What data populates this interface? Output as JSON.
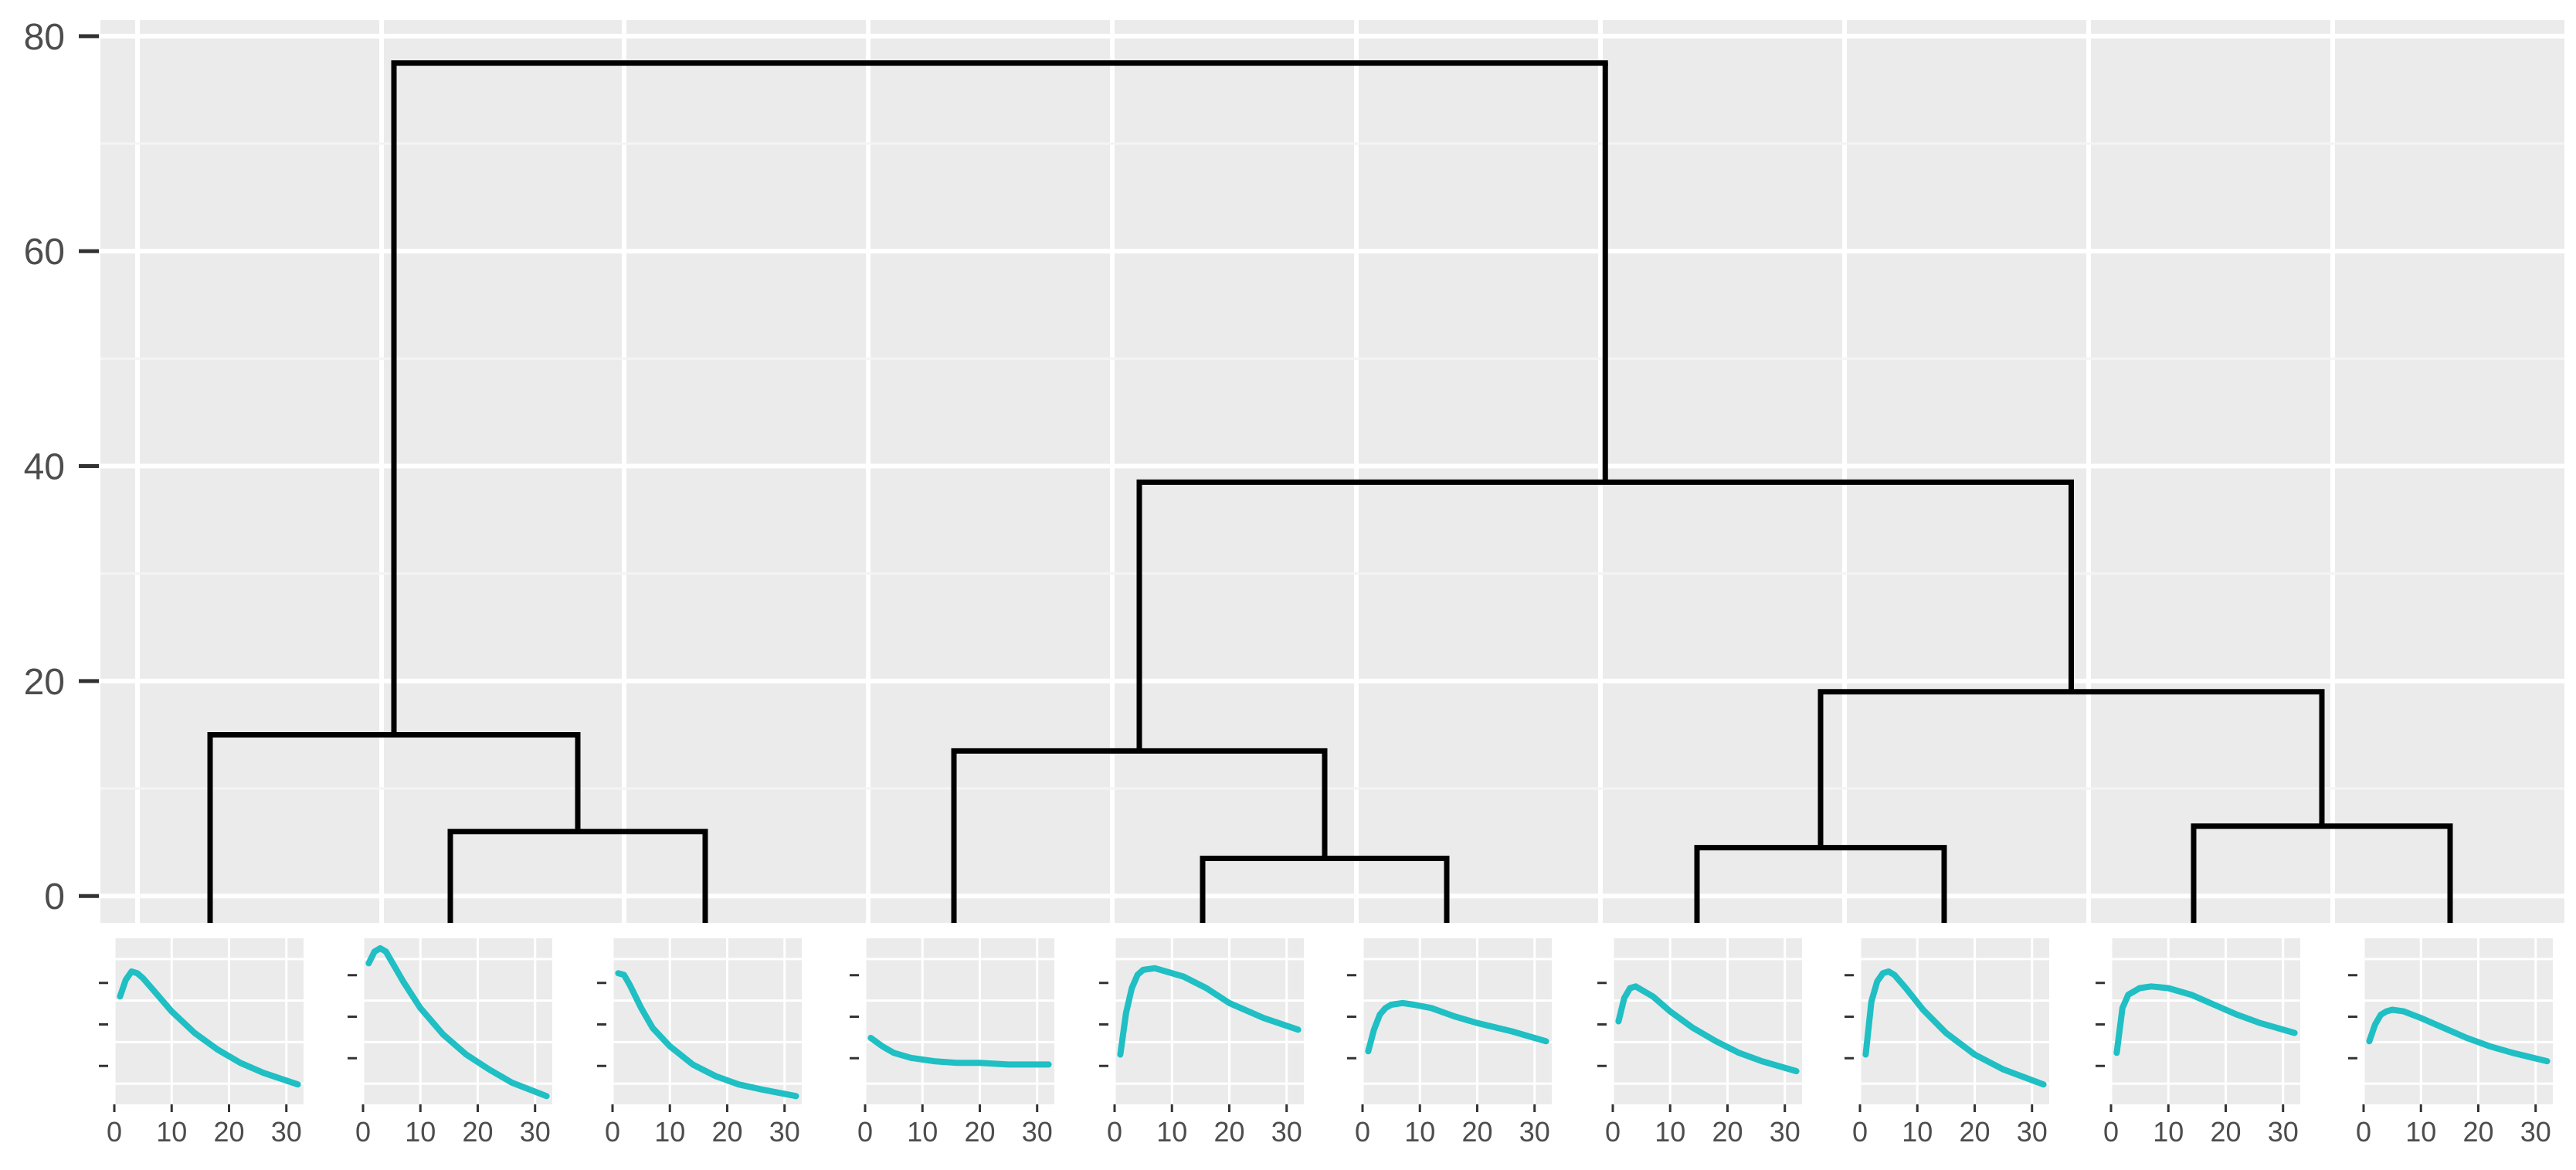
{
  "chart_data": [
    {
      "type": "dendrogram",
      "title": "",
      "xlabel": "",
      "ylabel": "",
      "ylim": [
        -2.5,
        81.5
      ],
      "yticks": [
        0,
        20,
        40,
        60,
        80
      ],
      "ytick_labels": [
        "0",
        "20",
        "40",
        "60",
        "80"
      ],
      "grid": true,
      "leaves": 10,
      "merges": [
        {
          "left": 2,
          "right": 3,
          "height": 6
        },
        {
          "left": 1,
          "right": "2-3",
          "height": 15
        },
        {
          "left": 5,
          "right": 6,
          "height": 3.5
        },
        {
          "left": 4,
          "right": "5-6",
          "height": 13.5
        },
        {
          "left": 7,
          "right": 8,
          "height": 4.5
        },
        {
          "left": 9,
          "right": 10,
          "height": 6.5
        },
        {
          "left": "7-8",
          "right": "9-10",
          "height": 19
        },
        {
          "left": "4-6",
          "right": "7-10",
          "height": 38.5
        },
        {
          "left": "1-3",
          "right": "4-10",
          "height": 77.5
        }
      ]
    },
    {
      "type": "line",
      "description": "small multiples under dendrogram leaves",
      "x_ticks": [
        0,
        10,
        20,
        30
      ],
      "x_tick_labels": [
        "0",
        "10",
        "20",
        "30"
      ],
      "xlim": [
        0,
        33
      ],
      "ylim": [
        0,
        1
      ],
      "line_color": "#1fbfc4",
      "panels": [
        {
          "x": [
            1,
            2,
            3,
            4,
            5,
            7,
            10,
            14,
            18,
            22,
            26,
            32
          ],
          "y": [
            0.65,
            0.75,
            0.8,
            0.79,
            0.76,
            0.68,
            0.56,
            0.43,
            0.33,
            0.25,
            0.19,
            0.12
          ]
        },
        {
          "x": [
            1,
            2,
            3,
            4,
            5,
            7,
            10,
            14,
            18,
            22,
            26,
            32
          ],
          "y": [
            0.85,
            0.92,
            0.94,
            0.92,
            0.86,
            0.74,
            0.58,
            0.42,
            0.3,
            0.21,
            0.13,
            0.05
          ]
        },
        {
          "x": [
            1,
            2,
            3,
            5,
            7,
            10,
            14,
            18,
            22,
            26,
            32
          ],
          "y": [
            0.79,
            0.78,
            0.72,
            0.58,
            0.46,
            0.35,
            0.24,
            0.17,
            0.12,
            0.09,
            0.05
          ]
        },
        {
          "x": [
            1,
            3,
            5,
            8,
            12,
            16,
            20,
            25,
            32
          ],
          "y": [
            0.4,
            0.35,
            0.31,
            0.28,
            0.26,
            0.25,
            0.25,
            0.24,
            0.24
          ]
        },
        {
          "x": [
            1,
            2,
            3,
            4,
            5,
            7,
            9,
            12,
            16,
            20,
            26,
            32
          ],
          "y": [
            0.3,
            0.55,
            0.7,
            0.78,
            0.81,
            0.82,
            0.8,
            0.77,
            0.7,
            0.61,
            0.52,
            0.45
          ]
        },
        {
          "x": [
            1,
            2,
            3,
            4,
            5,
            7,
            9,
            12,
            16,
            20,
            26,
            32
          ],
          "y": [
            0.32,
            0.45,
            0.54,
            0.58,
            0.6,
            0.61,
            0.6,
            0.58,
            0.53,
            0.49,
            0.44,
            0.38
          ]
        },
        {
          "x": [
            1,
            2,
            3,
            4,
            5,
            7,
            10,
            14,
            18,
            22,
            26,
            32
          ],
          "y": [
            0.5,
            0.64,
            0.7,
            0.71,
            0.69,
            0.65,
            0.56,
            0.46,
            0.38,
            0.31,
            0.26,
            0.2
          ]
        },
        {
          "x": [
            1,
            2,
            3,
            4,
            5,
            6,
            8,
            11,
            15,
            20,
            25,
            32
          ],
          "y": [
            0.3,
            0.62,
            0.74,
            0.79,
            0.8,
            0.78,
            0.7,
            0.57,
            0.43,
            0.3,
            0.21,
            0.12
          ]
        },
        {
          "x": [
            1,
            2,
            3,
            5,
            7,
            10,
            14,
            18,
            22,
            26,
            32
          ],
          "y": [
            0.31,
            0.58,
            0.66,
            0.7,
            0.71,
            0.7,
            0.66,
            0.6,
            0.54,
            0.49,
            0.43
          ]
        },
        {
          "x": [
            1,
            2,
            3,
            4,
            5,
            7,
            10,
            14,
            18,
            22,
            26,
            32
          ],
          "y": [
            0.38,
            0.48,
            0.54,
            0.56,
            0.57,
            0.56,
            0.52,
            0.46,
            0.4,
            0.35,
            0.31,
            0.26
          ]
        }
      ]
    }
  ]
}
